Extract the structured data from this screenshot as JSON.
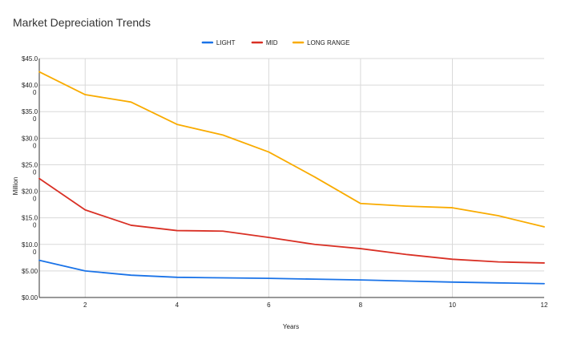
{
  "chart_data": {
    "type": "line",
    "title": "Market Depreciation Trends",
    "xlabel": "Years",
    "ylabel": "Million",
    "x": [
      1,
      2,
      3,
      4,
      5,
      6,
      7,
      8,
      9,
      10,
      11,
      12
    ],
    "xlim": [
      1,
      12
    ],
    "ylim": [
      0,
      45
    ],
    "x_ticks": [
      2,
      4,
      6,
      8,
      10,
      12
    ],
    "y_ticks": [
      {
        "value": 0,
        "label": "$0.00",
        "label2": ""
      },
      {
        "value": 5,
        "label": "$5.00",
        "label2": ""
      },
      {
        "value": 10,
        "label": "$10.0",
        "label2": "0"
      },
      {
        "value": 15,
        "label": "$15.0",
        "label2": "0"
      },
      {
        "value": 20,
        "label": "$20.0",
        "label2": "0"
      },
      {
        "value": 25,
        "label": "$25.0",
        "label2": "0"
      },
      {
        "value": 30,
        "label": "$30.0",
        "label2": "0"
      },
      {
        "value": 35,
        "label": "$35.0",
        "label2": "0"
      },
      {
        "value": 40,
        "label": "$40.0",
        "label2": "0"
      },
      {
        "value": 45,
        "label": "$45.0",
        "label2": ""
      }
    ],
    "grid": true,
    "legend_position": "top",
    "series": [
      {
        "name": "LIGHT",
        "color": "#1a73e8",
        "values": [
          7.0,
          5.0,
          4.2,
          3.8,
          3.7,
          3.6,
          3.45,
          3.3,
          3.1,
          2.9,
          2.75,
          2.6
        ]
      },
      {
        "name": "MID",
        "color": "#d93025",
        "values": [
          22.4,
          16.5,
          13.6,
          12.6,
          12.5,
          11.3,
          10.0,
          9.2,
          8.1,
          7.2,
          6.7,
          6.5
        ]
      },
      {
        "name": "LONG RANGE",
        "color": "#f9ab00",
        "values": [
          42.5,
          38.2,
          36.8,
          32.6,
          30.6,
          27.4,
          22.7,
          17.7,
          17.2,
          16.9,
          15.4,
          13.3
        ]
      }
    ]
  }
}
